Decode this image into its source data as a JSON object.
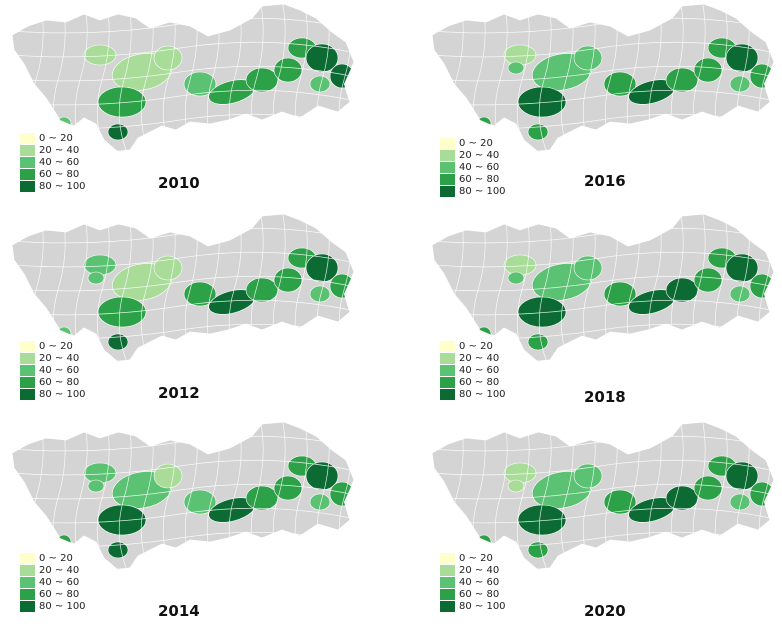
{
  "legend": {
    "classes": [
      {
        "label": "0 ~ 20",
        "color": "#ffffcc"
      },
      {
        "label": "20 ~ 40",
        "color": "#a8dc98"
      },
      {
        "label": "40 ~ 60",
        "color": "#5bc273"
      },
      {
        "label": "60 ~ 80",
        "color": "#2da148"
      },
      {
        "label": "80 ~ 100",
        "color": "#0b6b33"
      }
    ],
    "no_data_color": "#d4d4d4"
  },
  "maps": [
    {
      "year": "2010"
    },
    {
      "year": "2012"
    },
    {
      "year": "2014"
    },
    {
      "year": "2016"
    },
    {
      "year": "2018"
    },
    {
      "year": "2020"
    }
  ]
}
